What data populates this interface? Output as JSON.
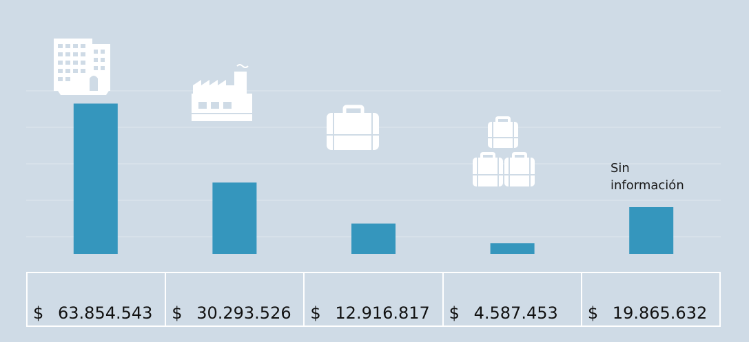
{
  "chart_data": {
    "type": "bar",
    "categories": [
      "",
      "",
      "",
      "",
      ""
    ],
    "values": [
      63854543,
      30293526,
      12916817,
      4587453,
      19865632
    ],
    "currency_symbol": "$",
    "value_labels": [
      "63.854.543",
      "30.293.526",
      "12.916.817",
      "4.587.453",
      "19.865.632"
    ],
    "annotations": [
      {
        "index": 4,
        "text_line1": "Sin",
        "text_line2": "información"
      }
    ],
    "title": "",
    "xlabel": "",
    "ylabel": "",
    "ylim": [
      0,
      64000000
    ],
    "grid": true
  },
  "icons": [
    "office-building-icon",
    "factory-icon",
    "briefcase-icon",
    "three-briefcases-icon",
    ""
  ],
  "colors": {
    "background": "#cfdbe6",
    "bar": "#3596bd",
    "icon": "#ffffff",
    "table_border": "#ffffff"
  }
}
